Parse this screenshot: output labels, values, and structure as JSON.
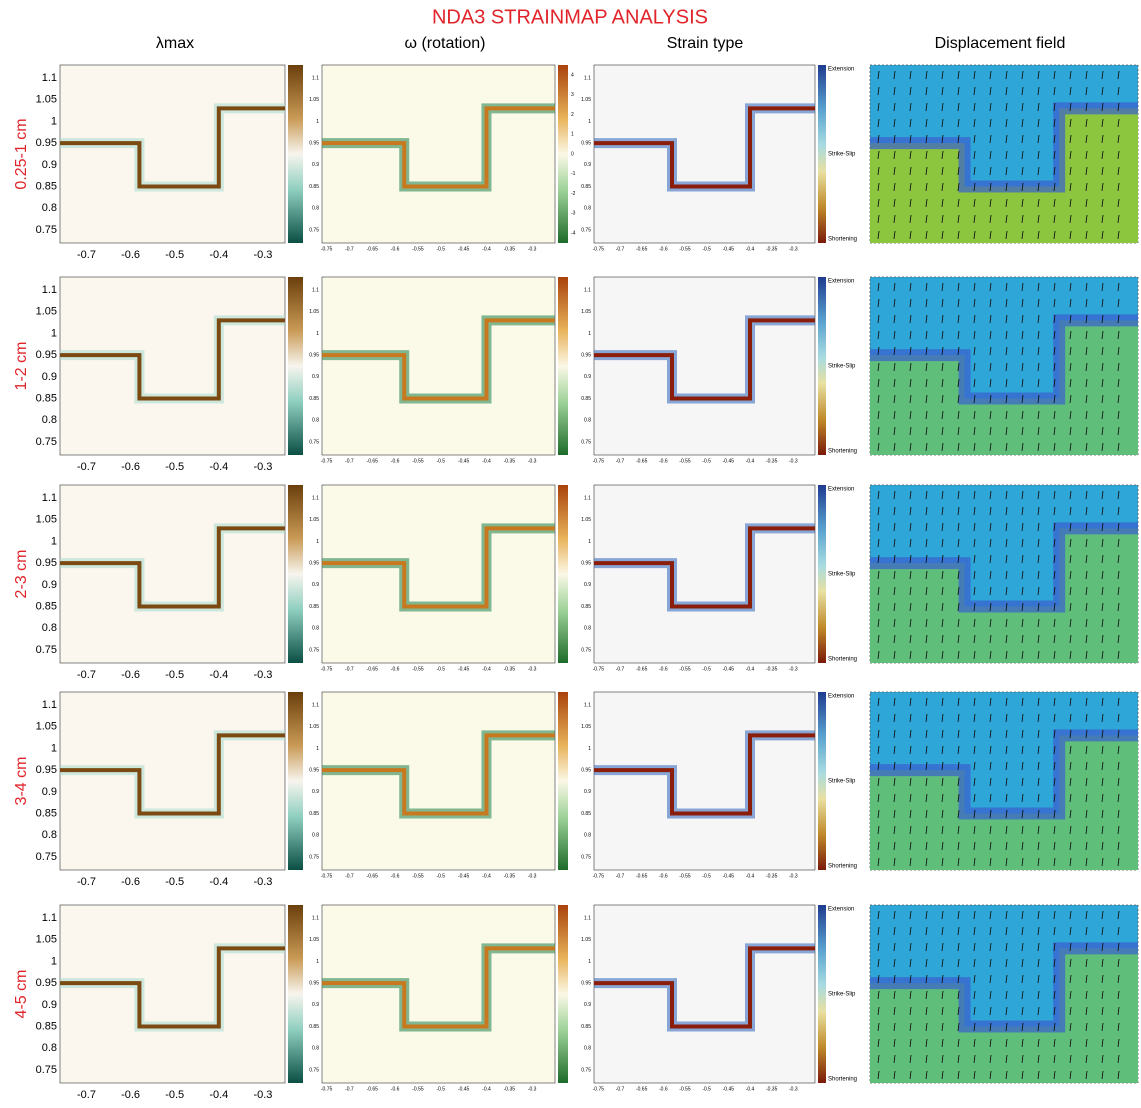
{
  "title": "NDA3 STRAINMAP ANALYSIS",
  "columns": [
    "λmax",
    "ω (rotation)",
    "Strain type",
    "Displacement field"
  ],
  "rows": [
    "0.25-1 cm",
    "1-2 cm",
    "2-3 cm",
    "3-4 cm",
    "4-5 cm"
  ],
  "x_ticks": [
    -0.7,
    -0.6,
    -0.5,
    -0.4,
    -0.3
  ],
  "y_ticks": [
    1.1,
    1.05,
    1,
    0.95,
    0.9,
    0.85,
    0.8,
    0.75
  ],
  "fine_x_ticks": [
    -0.75,
    -0.7,
    -0.65,
    -0.6,
    -0.55,
    -0.5,
    -0.45,
    -0.4,
    -0.35,
    -0.3
  ],
  "omega_ticks": [
    4,
    3,
    2,
    1,
    0,
    -1,
    -2,
    -3,
    -4
  ],
  "strain_legend": [
    "Extension",
    "Strike-Slip",
    "Shortening"
  ]
}
